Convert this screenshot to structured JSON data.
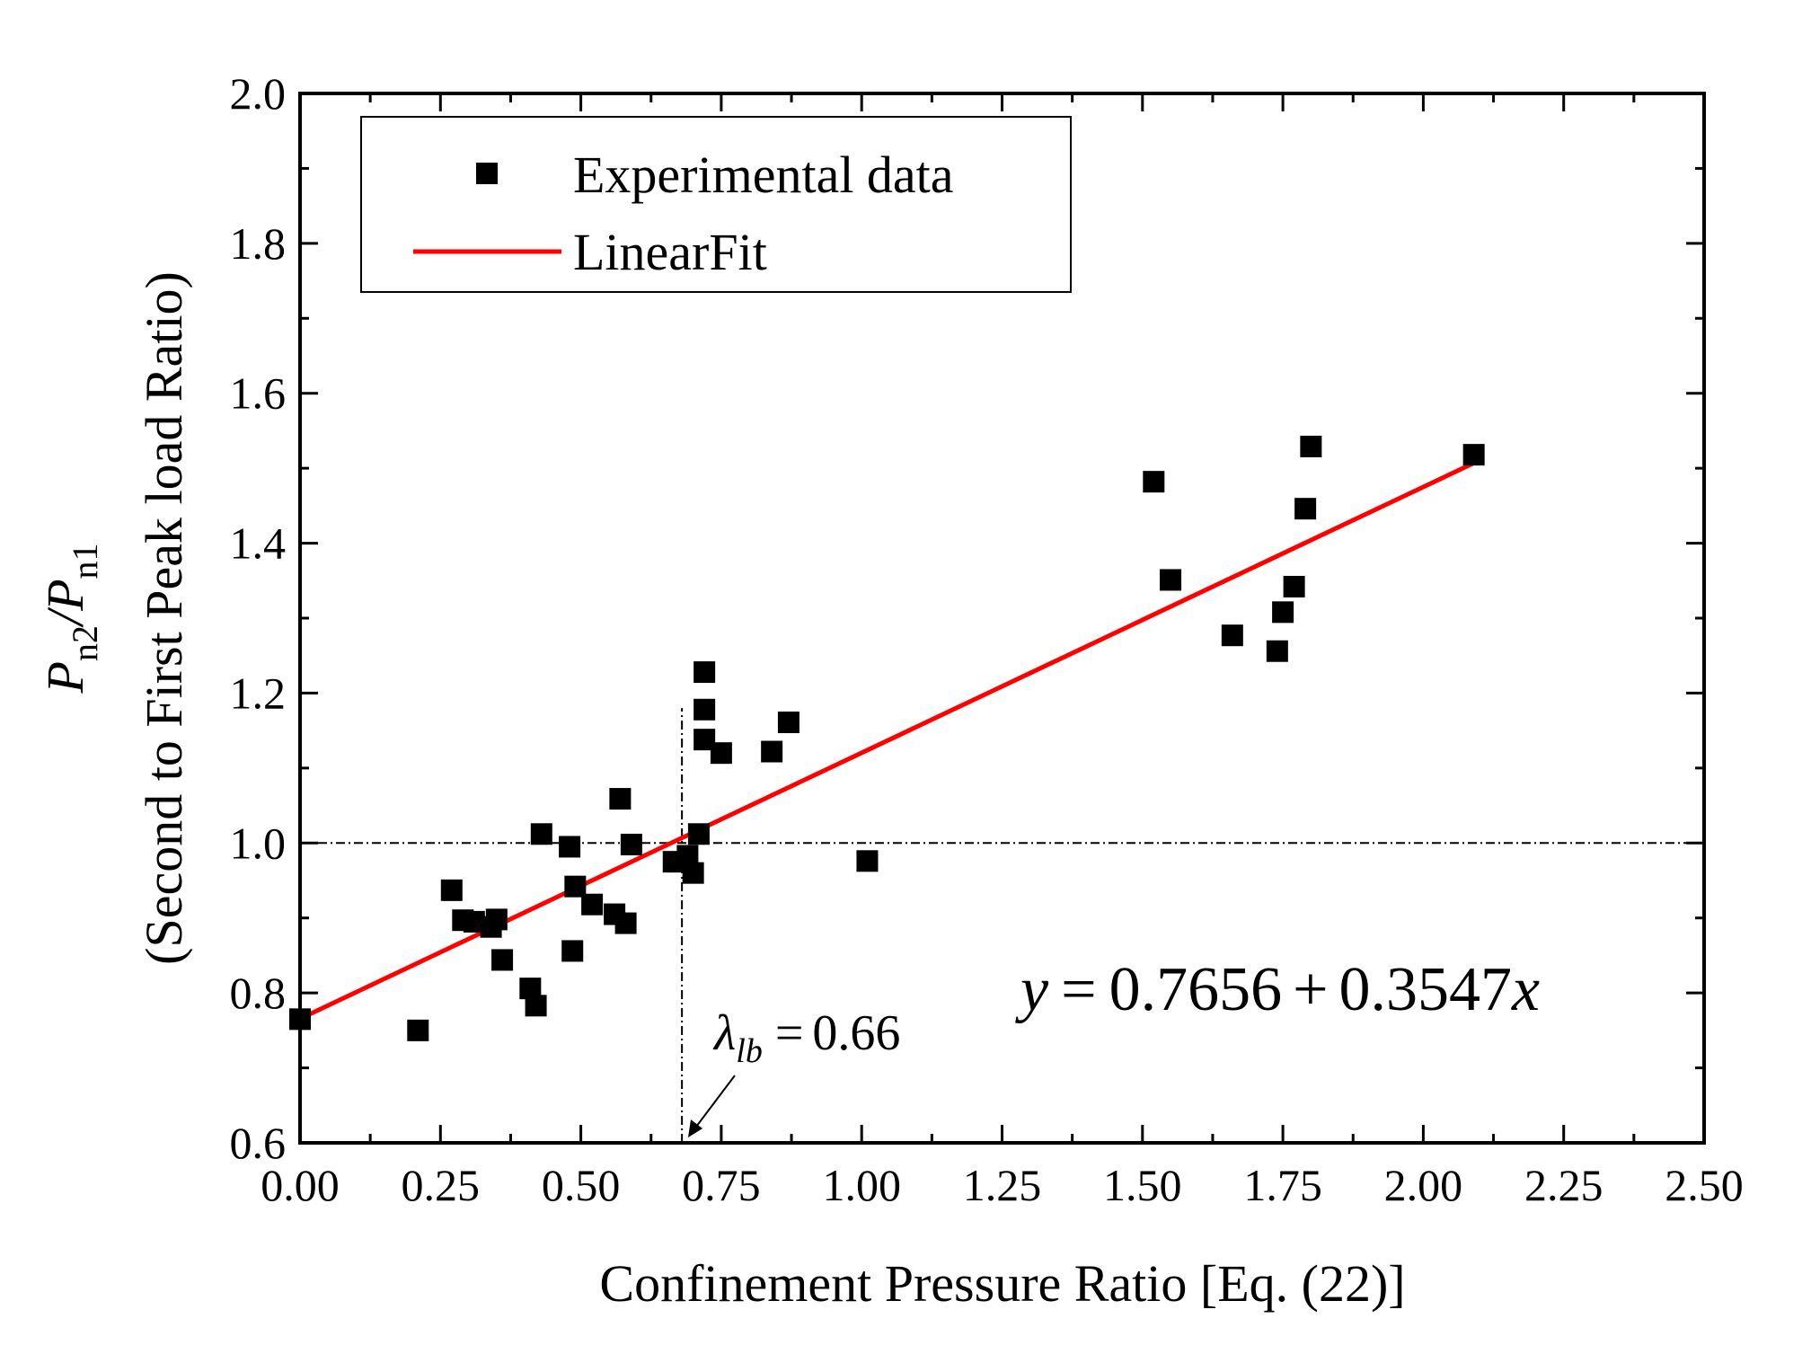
{
  "chart_data": {
    "type": "scatter",
    "title": "",
    "xlabel": "Confinement Pressure Ratio [Eq. (22)]",
    "ylabel": {
      "main": "P",
      "sub1": "n2",
      "slash": "/P",
      "sub2": "n1",
      "second_line": "(Second to First Peak load Ratio)"
    },
    "xlim": [
      0.0,
      2.5
    ],
    "ylim": [
      0.6,
      2.0
    ],
    "xticks": [
      0.0,
      0.25,
      0.5,
      0.75,
      1.0,
      1.25,
      1.5,
      1.75,
      2.0,
      2.25,
      2.5
    ],
    "xtick_labels": [
      "0.00",
      "0.25",
      "0.50",
      "0.75",
      "1.00",
      "1.25",
      "1.50",
      "1.75",
      "2.00",
      "2.25",
      "2.50"
    ],
    "yticks": [
      0.6,
      0.8,
      1.0,
      1.2,
      1.4,
      1.6,
      1.8,
      2.0
    ],
    "ytick_labels": [
      "0.6",
      "0.8",
      "1.0",
      "1.2",
      "1.4",
      "1.6",
      "1.8",
      "2.0"
    ],
    "grid": false,
    "legend_position": "top-left",
    "series": [
      {
        "name": "Experimental data",
        "type": "scatter",
        "color": "#000000",
        "points": [
          [
            0.0,
            0.765
          ],
          [
            0.21,
            0.75
          ],
          [
            0.27,
            0.937
          ],
          [
            0.29,
            0.897
          ],
          [
            0.31,
            0.895
          ],
          [
            0.34,
            0.888
          ],
          [
            0.35,
            0.898
          ],
          [
            0.36,
            0.844
          ],
          [
            0.41,
            0.806
          ],
          [
            0.42,
            0.783
          ],
          [
            0.43,
            1.012
          ],
          [
            0.48,
            0.995
          ],
          [
            0.485,
            0.856
          ],
          [
            0.49,
            0.942
          ],
          [
            0.52,
            0.918
          ],
          [
            0.56,
            0.905
          ],
          [
            0.57,
            1.059
          ],
          [
            0.58,
            0.893
          ],
          [
            0.59,
            0.998
          ],
          [
            0.665,
            0.975
          ],
          [
            0.69,
            0.983
          ],
          [
            0.7,
            0.96
          ],
          [
            0.71,
            1.012
          ],
          [
            0.72,
            1.228
          ],
          [
            0.72,
            1.178
          ],
          [
            0.72,
            1.138
          ],
          [
            0.75,
            1.12
          ],
          [
            0.84,
            1.122
          ],
          [
            0.87,
            1.161
          ],
          [
            1.01,
            0.976
          ],
          [
            1.52,
            1.482
          ],
          [
            1.55,
            1.351
          ],
          [
            1.66,
            1.277
          ],
          [
            1.74,
            1.256
          ],
          [
            1.75,
            1.308
          ],
          [
            1.77,
            1.342
          ],
          [
            1.79,
            1.446
          ],
          [
            1.8,
            1.529
          ],
          [
            2.09,
            1.518
          ]
        ]
      },
      {
        "name": "LinearFit",
        "type": "line",
        "color": "#ff0000",
        "intercept": 0.7656,
        "slope": 0.3547,
        "x_range": [
          0.0,
          2.09
        ]
      }
    ],
    "reference_lines": [
      {
        "orientation": "horizontal",
        "y": 1.0
      },
      {
        "orientation": "vertical",
        "x": 0.68,
        "y_range": [
          0.6,
          1.18
        ]
      }
    ],
    "annotations": {
      "equation": {
        "y": "y",
        "eq1": "=",
        "v1": "0.7656",
        "plus": "+",
        "v2": "0.3547",
        "x": "x"
      },
      "lambda": {
        "symbol": "λ",
        "sub": "lb",
        "eq": "=",
        "value": "0.66"
      }
    }
  }
}
